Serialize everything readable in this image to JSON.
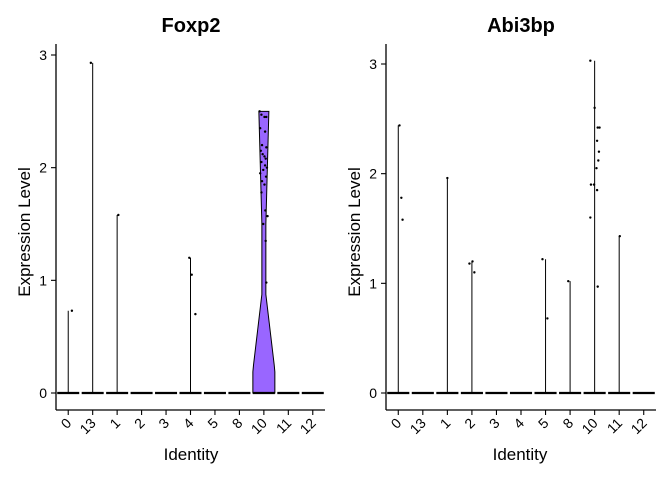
{
  "chart_data": [
    {
      "type": "violin",
      "title": "Foxp2",
      "xlabel": "Identity",
      "ylabel": "Expression Level",
      "ylim": [
        0,
        3.1
      ],
      "yticks": [
        "0",
        "1",
        "2",
        "3"
      ],
      "categories": [
        "0",
        "13",
        "1",
        "2",
        "3",
        "4",
        "5",
        "8",
        "10",
        "11",
        "12"
      ],
      "fill_color": "#9966ff",
      "series": [
        {
          "category": "0",
          "max": 0.73,
          "violin": false,
          "points": [
            [
              0.3,
              0.73
            ]
          ]
        },
        {
          "category": "13",
          "max": 2.93,
          "violin": false,
          "points": [
            [
              -0.15,
              2.93
            ]
          ]
        },
        {
          "category": "1",
          "max": 1.58,
          "violin": false,
          "points": [
            [
              0.1,
              1.58
            ]
          ]
        },
        {
          "category": "2",
          "max": 0,
          "violin": false,
          "points": []
        },
        {
          "category": "3",
          "max": 0,
          "violin": false,
          "points": []
        },
        {
          "category": "4",
          "max": 1.2,
          "violin": false,
          "points": [
            [
              -0.1,
              1.2
            ],
            [
              0.1,
              1.05
            ],
            [
              0.4,
              0.7
            ]
          ]
        },
        {
          "category": "5",
          "max": 0,
          "violin": false,
          "points": []
        },
        {
          "category": "8",
          "max": 0,
          "violin": false,
          "points": []
        },
        {
          "category": "10",
          "max": 2.5,
          "violin": true,
          "points": [
            [
              -0.35,
              2.5
            ],
            [
              -0.2,
              2.47
            ],
            [
              0.05,
              2.45
            ],
            [
              0.2,
              2.45
            ],
            [
              -0.3,
              2.35
            ],
            [
              0.1,
              2.32
            ],
            [
              -0.15,
              2.2
            ],
            [
              0.2,
              2.18
            ],
            [
              -0.25,
              2.15
            ],
            [
              -0.1,
              2.12
            ],
            [
              0.05,
              2.1
            ],
            [
              0.15,
              2.08
            ],
            [
              -0.2,
              2.05
            ],
            [
              0.1,
              2.02
            ],
            [
              0.25,
              2.0
            ],
            [
              -0.05,
              1.98
            ],
            [
              -0.3,
              1.95
            ],
            [
              0.18,
              1.92
            ],
            [
              -0.15,
              1.88
            ],
            [
              0.05,
              1.85
            ],
            [
              -0.2,
              1.78
            ],
            [
              0.12,
              1.62
            ],
            [
              0.3,
              1.57
            ],
            [
              -0.05,
              1.5
            ],
            [
              0.15,
              1.35
            ],
            [
              0.2,
              0.98
            ]
          ]
        },
        {
          "category": "11",
          "max": 0,
          "violin": false,
          "points": []
        },
        {
          "category": "12",
          "max": 0,
          "violin": false,
          "points": []
        }
      ]
    },
    {
      "type": "violin",
      "title": "Abi3bp",
      "xlabel": "Identity",
      "ylabel": "Expression Level",
      "ylim": [
        0,
        3.2
      ],
      "yticks": [
        "0",
        "1",
        "2",
        "3"
      ],
      "categories": [
        "0",
        "13",
        "1",
        "2",
        "3",
        "4",
        "5",
        "8",
        "10",
        "11",
        "12"
      ],
      "fill_color": "#9966ff",
      "series": [
        {
          "category": "0",
          "max": 2.44,
          "violin": false,
          "points": [
            [
              0.1,
              2.44
            ],
            [
              0.25,
              1.78
            ],
            [
              0.35,
              1.58
            ]
          ]
        },
        {
          "category": "13",
          "max": 0,
          "violin": false,
          "points": []
        },
        {
          "category": "1",
          "max": 1.96,
          "violin": false,
          "points": [
            [
              0.0,
              1.96
            ]
          ]
        },
        {
          "category": "2",
          "max": 1.2,
          "violin": false,
          "points": [
            [
              -0.2,
              1.18
            ],
            [
              0.05,
              1.2
            ],
            [
              0.2,
              1.1
            ]
          ]
        },
        {
          "category": "3",
          "max": 0,
          "violin": false,
          "points": []
        },
        {
          "category": "4",
          "max": 0,
          "violin": false,
          "points": []
        },
        {
          "category": "5",
          "max": 1.22,
          "violin": false,
          "points": [
            [
              -0.25,
              1.22
            ],
            [
              0.15,
              0.68
            ]
          ]
        },
        {
          "category": "8",
          "max": 1.02,
          "violin": false,
          "points": [
            [
              -0.15,
              1.02
            ]
          ]
        },
        {
          "category": "10",
          "max": 3.03,
          "violin": false,
          "points": [
            [
              -0.35,
              3.03
            ],
            [
              0.0,
              2.6
            ],
            [
              0.25,
              2.42
            ],
            [
              0.4,
              2.42
            ],
            [
              0.2,
              2.3
            ],
            [
              0.35,
              2.2
            ],
            [
              0.3,
              2.12
            ],
            [
              0.15,
              2.05
            ],
            [
              -0.3,
              1.9
            ],
            [
              -0.05,
              1.9
            ],
            [
              0.2,
              1.85
            ],
            [
              -0.35,
              1.6
            ],
            [
              0.25,
              0.97
            ]
          ]
        },
        {
          "category": "11",
          "max": 1.43,
          "violin": false,
          "points": [
            [
              0.05,
              1.43
            ]
          ]
        },
        {
          "category": "12",
          "max": 0,
          "violin": false,
          "points": []
        }
      ]
    }
  ]
}
